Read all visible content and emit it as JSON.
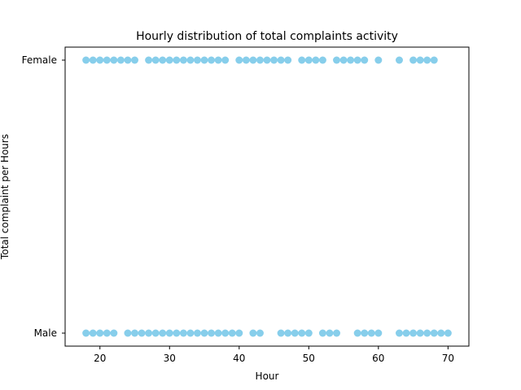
{
  "chart_data": {
    "type": "scatter",
    "title": "Hourly distribution of total complaints activity",
    "xlabel": "Hour",
    "ylabel": "Total complaint per Hours",
    "xlim": [
      15,
      73
    ],
    "x_ticks": [
      20,
      30,
      40,
      50,
      60,
      70
    ],
    "categories": [
      "Male",
      "Female"
    ],
    "marker_color": "#87ceeb",
    "grid": false,
    "legend": "none",
    "series": [
      {
        "category": "Female",
        "x": [
          18,
          19,
          20,
          21,
          22,
          23,
          24,
          25,
          27,
          28,
          29,
          30,
          31,
          32,
          33,
          34,
          35,
          36,
          37,
          38,
          40,
          41,
          42,
          43,
          44,
          45,
          46,
          47,
          49,
          50,
          51,
          52,
          54,
          55,
          56,
          57,
          58,
          60,
          63,
          65,
          66,
          67,
          68
        ]
      },
      {
        "category": "Male",
        "x": [
          18,
          19,
          20,
          21,
          22,
          24,
          25,
          26,
          27,
          28,
          29,
          30,
          31,
          32,
          33,
          34,
          35,
          36,
          37,
          38,
          39,
          40,
          42,
          43,
          46,
          47,
          48,
          49,
          50,
          52,
          53,
          54,
          57,
          58,
          59,
          60,
          63,
          64,
          65,
          66,
          67,
          68,
          69,
          70
        ]
      }
    ]
  }
}
